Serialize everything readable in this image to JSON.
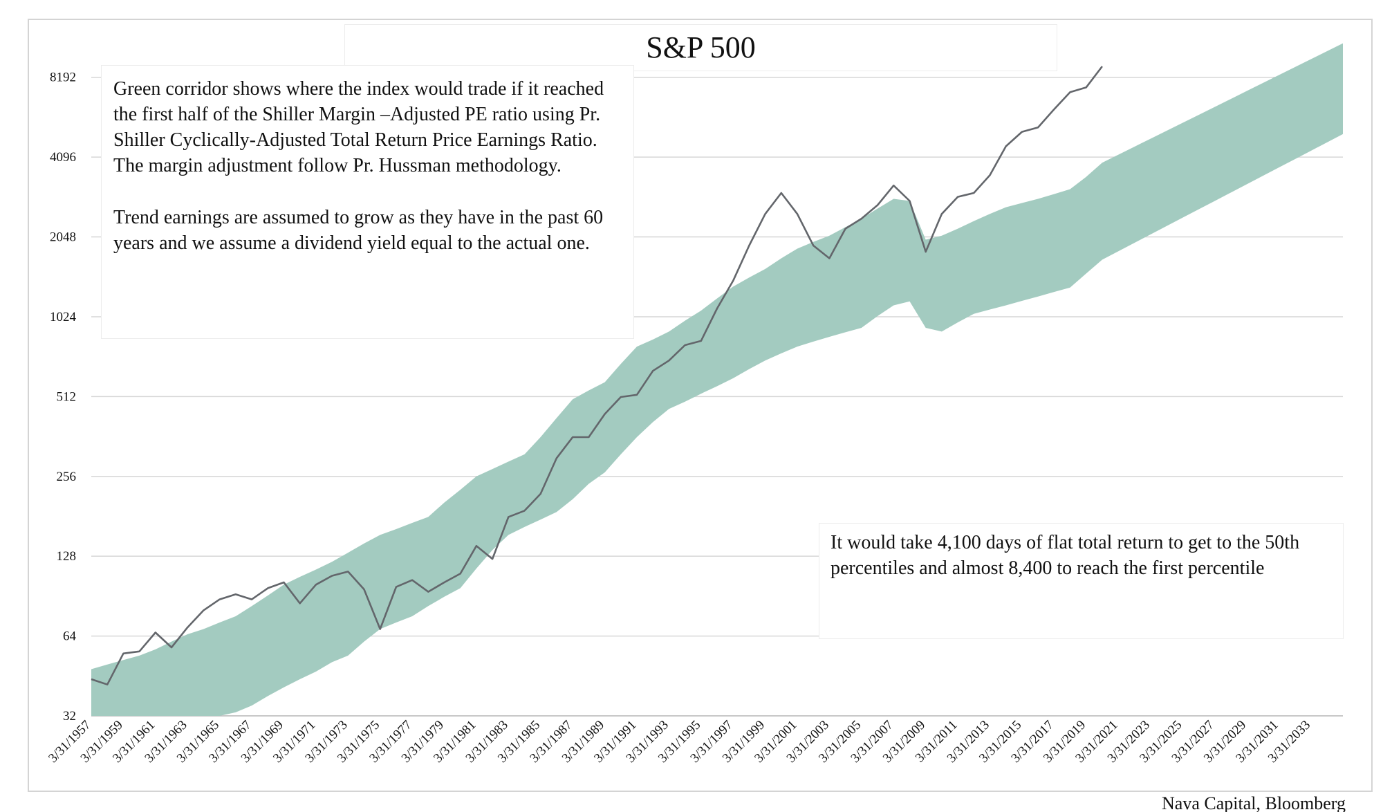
{
  "chart_data": {
    "type": "line",
    "title": "S&P 500",
    "yscale": "log",
    "logbase": 2,
    "ylim": [
      32,
      11585
    ],
    "yticks": [
      32,
      64,
      128,
      256,
      512,
      1024,
      2048,
      4096,
      8192
    ],
    "grid": true,
    "categories": [
      "3/31/1957",
      null,
      "3/31/1959",
      null,
      "3/31/1961",
      null,
      "3/31/1963",
      null,
      "3/31/1965",
      null,
      "3/31/1967",
      null,
      "3/31/1969",
      null,
      "3/31/1971",
      null,
      "3/31/1973",
      null,
      "3/31/1975",
      null,
      "3/31/1977",
      null,
      "3/31/1979",
      null,
      "3/31/1981",
      null,
      "3/31/1983",
      null,
      "3/31/1985",
      null,
      "3/31/1987",
      null,
      "3/31/1989",
      null,
      "3/31/1991",
      null,
      "3/31/1993",
      null,
      "3/31/1995",
      null,
      "3/31/1997",
      null,
      "3/31/1999",
      null,
      "3/31/2001",
      null,
      "3/31/2003",
      null,
      "3/31/2005",
      null,
      "3/31/2007",
      null,
      "3/31/2009",
      null,
      "3/31/2011",
      null,
      "3/31/2013",
      null,
      "3/31/2015",
      null,
      "3/31/2017",
      null,
      "3/31/2019",
      null,
      "3/31/2021",
      null,
      "3/31/2023",
      null,
      "3/31/2025",
      null,
      "3/31/2027",
      null,
      "3/31/2029",
      null,
      "3/31/2031",
      null,
      "3/31/2033",
      null,
      null
    ],
    "series": [
      {
        "color": "#63666b",
        "values": [
          44,
          42,
          55,
          56,
          66,
          58,
          69,
          80,
          88,
          92,
          88,
          97,
          102,
          85,
          100,
          108,
          112,
          96,
          68,
          98,
          104,
          94,
          102,
          110,
          140,
          125,
          180,
          190,
          220,
          300,
          360,
          360,
          440,
          510,
          520,
          640,
          700,
          800,
          830,
          1100,
          1400,
          1900,
          2500,
          3000,
          2500,
          1900,
          1700,
          2200,
          2400,
          2700,
          3200,
          2800,
          1800,
          2500,
          2900,
          3000,
          3500,
          4500,
          5100,
          5300,
          6200,
          7200,
          7500,
          9000,
          null,
          null,
          null,
          null,
          null,
          null,
          null,
          null,
          null,
          null,
          null,
          null,
          null,
          null,
          null
        ]
      }
    ],
    "band": {
      "color": "#a3cbc0",
      "lower": [
        32,
        32,
        32,
        32,
        32,
        32,
        32,
        32,
        32,
        33,
        35,
        38,
        41,
        44,
        47,
        51,
        54,
        61,
        68,
        72,
        76,
        83,
        90,
        97,
        115,
        135,
        154,
        165,
        176,
        188,
        210,
        240,
        265,
        310,
        360,
        410,
        460,
        490,
        525,
        560,
        600,
        650,
        700,
        745,
        790,
        825,
        860,
        895,
        930,
        1030,
        1130,
        1170,
        930,
        900,
        975,
        1050,
        1090,
        1130,
        1175,
        1220,
        1270,
        1320,
        1490,
        1680,
        1807,
        1943,
        2090,
        2248,
        2417,
        2600,
        2796,
        3006,
        3233,
        3477,
        3739,
        4021,
        4324,
        4650,
        5000
      ],
      "upper": [
        48,
        50,
        52,
        54,
        57,
        61,
        65,
        68,
        72,
        76,
        83,
        91,
        100,
        107,
        114,
        122,
        132,
        143,
        154,
        162,
        171,
        180,
        204,
        228,
        256,
        273,
        291,
        310,
        360,
        425,
        500,
        540,
        580,
        680,
        790,
        840,
        900,
        990,
        1080,
        1200,
        1330,
        1440,
        1550,
        1700,
        1850,
        1960,
        2070,
        2230,
        2400,
        2620,
        2850,
        2800,
        2000,
        2070,
        2200,
        2350,
        2500,
        2650,
        2750,
        2850,
        2970,
        3100,
        3450,
        3900,
        4180,
        4479,
        4800,
        5143,
        5512,
        5906,
        6329,
        6782,
        7268,
        7788,
        8346,
        8943,
        9584,
        10270,
        11000
      ]
    },
    "annotations": [
      {
        "paragraphs": [
          "Green corridor shows where the index would trade if it reached the first half of the Shiller Margin –Adjusted PE ratio using Pr. Shiller Cyclically-Adjusted Total Return Price Earnings Ratio. The margin adjustment follow Pr. Hussman methodology.",
          "Trend earnings are assumed to grow as they have in the past 60 years and we assume a dividend yield equal to the actual one."
        ]
      },
      {
        "paragraphs": [
          "It would take 4,100 days of flat total return to get to the 50th percentiles and almost 8,400 to reach the first percentile"
        ]
      }
    ],
    "source": "Nava Capital, Bloomberg"
  }
}
